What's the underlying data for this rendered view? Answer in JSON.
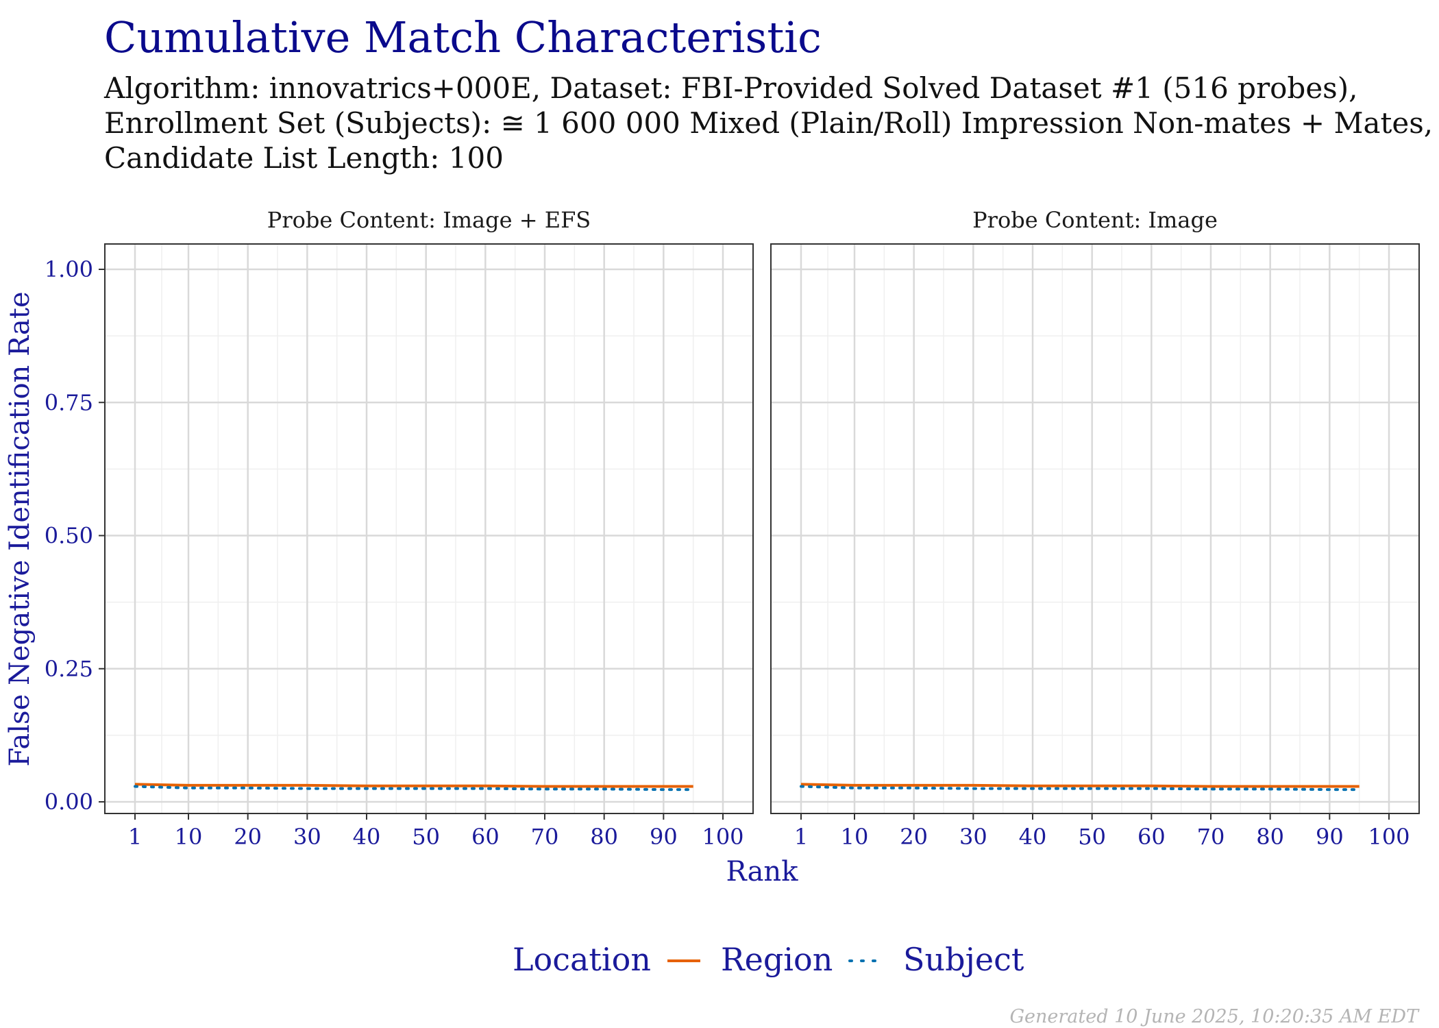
{
  "header": {
    "title": "Cumulative Match Characteristic",
    "subtitle_line1": "Algorithm: innovatrics+000E, Dataset: FBI-Provided Solved Dataset #1 (516 probes),",
    "subtitle_line2": "Enrollment Set (Subjects): ≅ 1 600 000 Mixed (Plain/Roll) Impression Non-mates + Mates,",
    "subtitle_line3": "Candidate List Length: 100"
  },
  "footer": {
    "generated": "Generated 10 June 2025, 10:20:35 AM EDT"
  },
  "colors": {
    "title": "#0a0a8c",
    "axis_text": "#1a1a9a",
    "region": "#e66101",
    "subject": "#0571b0",
    "grid_major": "#d9d9d9",
    "grid_minor": "#efefef"
  },
  "chart_data": {
    "type": "line",
    "xlabel": "Rank",
    "ylabel": "False Negative Identification Rate",
    "xlim": [
      1,
      100
    ],
    "ylim": [
      0,
      1
    ],
    "x_ticks": [
      1,
      10,
      20,
      30,
      40,
      50,
      60,
      70,
      80,
      90,
      100
    ],
    "y_ticks": [
      0,
      0.25,
      0.5,
      0.75,
      1
    ],
    "y_tick_labels": [
      "0.00",
      "0.25",
      "0.50",
      "0.75",
      "1.00"
    ],
    "grid": true,
    "legend": {
      "title": "Location",
      "position": "bottom",
      "entries": [
        {
          "name": "Region",
          "style": "solid"
        },
        {
          "name": "Subject",
          "style": "dotted"
        }
      ]
    },
    "panels": [
      {
        "title": "Probe Content: Image + EFS",
        "series": [
          {
            "name": "Region",
            "x": [
              1,
              10,
              20,
              30,
              40,
              50,
              60,
              70,
              80,
              90,
              95
            ],
            "values": [
              0.033,
              0.031,
              0.031,
              0.031,
              0.03,
              0.03,
              0.03,
              0.029,
              0.029,
              0.029,
              0.029
            ]
          },
          {
            "name": "Subject",
            "x": [
              1,
              10,
              20,
              30,
              40,
              50,
              60,
              70,
              80,
              90,
              95
            ],
            "values": [
              0.029,
              0.026,
              0.026,
              0.025,
              0.025,
              0.025,
              0.025,
              0.024,
              0.024,
              0.023,
              0.023
            ]
          }
        ]
      },
      {
        "title": "Probe Content: Image",
        "series": [
          {
            "name": "Region",
            "x": [
              1,
              10,
              20,
              30,
              40,
              50,
              60,
              70,
              80,
              90,
              95
            ],
            "values": [
              0.033,
              0.031,
              0.031,
              0.031,
              0.03,
              0.03,
              0.03,
              0.029,
              0.029,
              0.029,
              0.029
            ]
          },
          {
            "name": "Subject",
            "x": [
              1,
              10,
              20,
              30,
              40,
              50,
              60,
              70,
              80,
              90,
              95
            ],
            "values": [
              0.029,
              0.026,
              0.026,
              0.025,
              0.025,
              0.025,
              0.025,
              0.024,
              0.024,
              0.023,
              0.023
            ]
          }
        ]
      }
    ]
  }
}
